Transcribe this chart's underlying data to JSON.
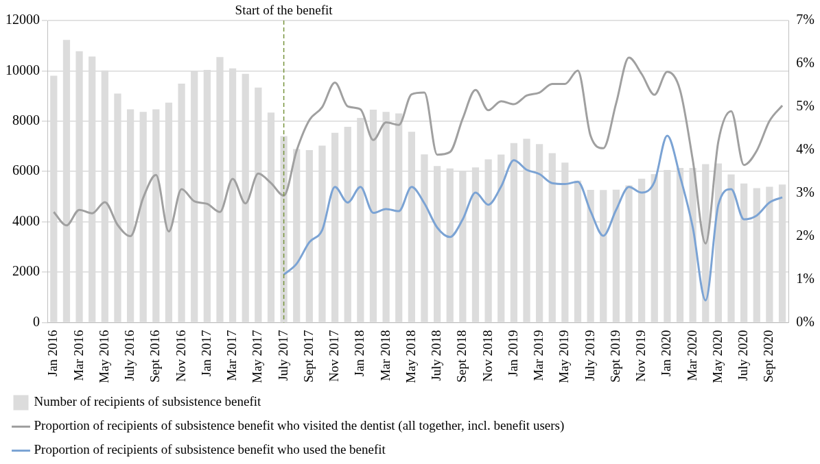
{
  "chart_data": {
    "type": "bar",
    "categories": [
      "Jan 2016",
      null,
      "Mar 2016",
      null,
      "May 2016",
      null,
      "July 2016",
      null,
      "Sept 2016",
      null,
      "Nov 2016",
      null,
      "Jan 2017",
      null,
      "Mar 2017",
      null,
      "May 2017",
      null,
      "July 2017",
      null,
      "Sept 2017",
      null,
      "Nov 2017",
      null,
      "Jan 2018",
      null,
      "Mar 2018",
      null,
      "May 2018",
      null,
      "July 2018",
      null,
      "Sept 2018",
      null,
      "Nov 2018",
      null,
      "Jan 2019",
      null,
      "Mar 2019",
      null,
      "May 2019",
      null,
      "July 2019",
      null,
      "Sept 2019",
      null,
      "Nov 2019",
      null,
      "Jan 2020",
      null,
      "Mar 2020",
      null,
      "May 2020",
      null,
      "July 2020",
      null,
      "Sept 2020",
      null
    ],
    "series": [
      {
        "name": "Number of recipients of subsistence benefit",
        "color": "#dcdcdc",
        "values": [
          9810,
          11230,
          10780,
          10570,
          10020,
          9100,
          8470,
          8370,
          8470,
          8740,
          9490,
          9990,
          10040,
          10550,
          10100,
          9880,
          9340,
          8340,
          7410,
          6890,
          6850,
          7030,
          7540,
          7780,
          8130,
          8460,
          8370,
          8310,
          7580,
          6680,
          6220,
          6120,
          6020,
          6160,
          6480,
          6670,
          7130,
          7300,
          7090,
          6730,
          6350,
          5640,
          5270,
          5260,
          5280,
          5450,
          5710,
          5900,
          6060,
          6140,
          6140,
          6290,
          6320,
          5880,
          5520,
          5340,
          5390,
          5480
        ]
      },
      {
        "name": "Proportion of recipients of subsistence benefit who visited the dentist (all together, incl. benefit users)",
        "type": "line",
        "axis": "y2",
        "color": "#a0a0a0",
        "values": [
          2.56,
          2.25,
          2.61,
          2.53,
          2.79,
          2.26,
          2.0,
          2.89,
          3.42,
          2.11,
          3.09,
          2.81,
          2.75,
          2.56,
          3.33,
          2.76,
          3.45,
          3.23,
          2.94,
          3.98,
          4.69,
          4.99,
          5.56,
          5.01,
          4.94,
          4.23,
          4.64,
          4.58,
          5.29,
          5.33,
          3.89,
          3.95,
          4.73,
          5.39,
          4.92,
          5.13,
          5.06,
          5.26,
          5.33,
          5.53,
          5.53,
          5.84,
          4.33,
          4.04,
          5.08,
          6.14,
          5.76,
          5.28,
          5.81,
          5.39,
          3.76,
          1.83,
          4.2,
          4.9,
          3.65,
          3.98,
          4.67,
          5.03
        ]
      },
      {
        "name": "Proportion of recipients of subsistence benefit who used the benefit",
        "type": "line",
        "axis": "y2",
        "color": "#7ba3d4",
        "values": [
          null,
          null,
          null,
          null,
          null,
          null,
          null,
          null,
          null,
          null,
          null,
          null,
          null,
          null,
          null,
          null,
          null,
          null,
          1.11,
          1.36,
          1.86,
          2.14,
          3.14,
          2.78,
          3.14,
          2.54,
          2.63,
          2.58,
          3.14,
          2.76,
          2.2,
          1.98,
          2.39,
          3.01,
          2.73,
          3.15,
          3.76,
          3.54,
          3.44,
          3.23,
          3.21,
          3.26,
          2.58,
          2.01,
          2.61,
          3.14,
          3.01,
          3.26,
          4.33,
          3.39,
          2.2,
          0.51,
          2.73,
          3.09,
          2.39,
          2.48,
          2.78,
          2.9
        ]
      }
    ],
    "ylim": [
      0,
      12000
    ],
    "yticks": [
      0,
      2000,
      4000,
      6000,
      8000,
      10000,
      12000
    ],
    "y2lim": [
      0,
      7
    ],
    "y2ticks": [
      {
        "value": 0,
        "label": "0%"
      },
      {
        "value": 1,
        "label": "1%"
      },
      {
        "value": 2,
        "label": "2%"
      },
      {
        "value": 3,
        "label": "3%"
      },
      {
        "value": 4,
        "label": "4%"
      },
      {
        "value": 5,
        "label": "5%"
      },
      {
        "value": 6,
        "label": "6%"
      },
      {
        "value": 7,
        "label": "7%"
      }
    ],
    "ref_lines": [
      {
        "axis": "x",
        "value": "July 2017",
        "label": "Start of the benefit",
        "color": "#77933c",
        "line_style": "dashed"
      }
    ],
    "grid": "y",
    "legend": "bottom",
    "marker": "none",
    "line_style": "solid"
  }
}
